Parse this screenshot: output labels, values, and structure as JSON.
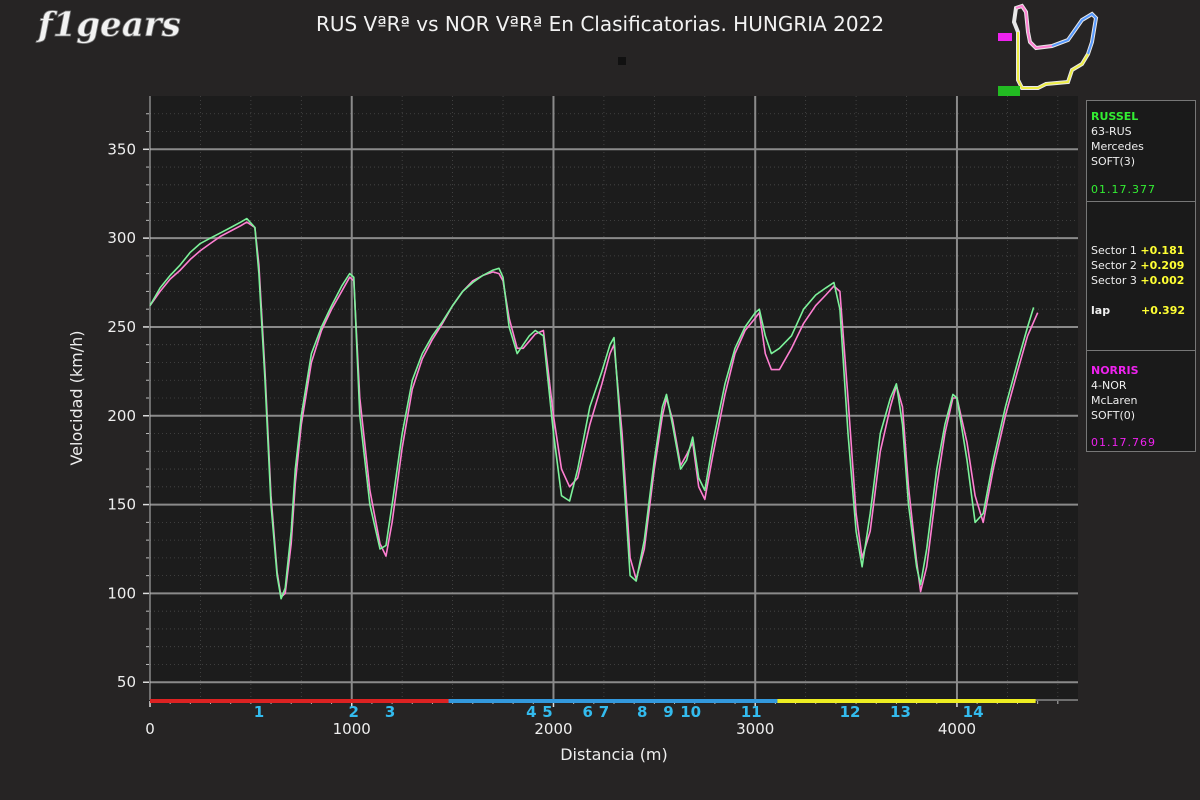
{
  "header": {
    "logo_text": "f1gears",
    "title": "RUS VªRª vs NOR VªRª En Clasificatorias. HUNGRIA 2022"
  },
  "colors": {
    "driver1": "#7cf29a",
    "driver2": "#ff7fd2",
    "sector1": "#dd2222",
    "sector2": "#3399dd",
    "sector3": "#eeee22",
    "turn_label": "#33bbee",
    "background": "#262424",
    "plot_bg": "#1c1c1c"
  },
  "info_panel": {
    "driver1": {
      "name": "RUSSEL",
      "code": "63-RUS",
      "team": "Mercedes",
      "tyre": "SOFT(3)",
      "laptime": "01.17.377"
    },
    "deltas": [
      {
        "label": "Sector 1",
        "value": "+0.181"
      },
      {
        "label": "Sector 2",
        "value": "+0.209"
      },
      {
        "label": "Sector 3",
        "value": "+0.002"
      }
    ],
    "lap_delta": {
      "label": "lap",
      "value": "+0.392"
    },
    "driver2": {
      "name": "NORRIS",
      "code": "4-NOR",
      "team": "McLaren",
      "tyre": "SOFT(0)",
      "laptime": "01.17.769"
    }
  },
  "chart_data": {
    "type": "line",
    "title": "RUS VªRª vs NOR VªRª En Clasificatorias. HUNGRIA 2022",
    "xlabel": "Distancia (m)",
    "ylabel": "Velocidad (km/h)",
    "xlim": [
      0,
      4600
    ],
    "ylim": [
      40,
      380
    ],
    "xticks": [
      0,
      1000,
      2000,
      3000,
      4000
    ],
    "yticks": [
      50,
      100,
      150,
      200,
      250,
      300,
      350
    ],
    "grid": true,
    "series": [
      {
        "name": "RUSSEL",
        "points": [
          [
            0,
            262
          ],
          [
            50,
            272
          ],
          [
            100,
            279
          ],
          [
            150,
            285
          ],
          [
            200,
            292
          ],
          [
            250,
            297
          ],
          [
            300,
            300
          ],
          [
            350,
            303
          ],
          [
            400,
            306
          ],
          [
            450,
            309
          ],
          [
            480,
            311
          ],
          [
            520,
            306
          ],
          [
            540,
            280
          ],
          [
            570,
            220
          ],
          [
            600,
            150
          ],
          [
            630,
            110
          ],
          [
            650,
            97
          ],
          [
            670,
            103
          ],
          [
            700,
            135
          ],
          [
            720,
            170
          ],
          [
            750,
            200
          ],
          [
            800,
            235
          ],
          [
            850,
            250
          ],
          [
            900,
            262
          ],
          [
            950,
            273
          ],
          [
            990,
            280
          ],
          [
            1010,
            278
          ],
          [
            1040,
            200
          ],
          [
            1090,
            150
          ],
          [
            1140,
            125
          ],
          [
            1170,
            127
          ],
          [
            1200,
            150
          ],
          [
            1250,
            190
          ],
          [
            1300,
            220
          ],
          [
            1350,
            235
          ],
          [
            1400,
            245
          ],
          [
            1450,
            253
          ],
          [
            1500,
            262
          ],
          [
            1550,
            270
          ],
          [
            1600,
            275
          ],
          [
            1650,
            279
          ],
          [
            1700,
            282
          ],
          [
            1730,
            283
          ],
          [
            1750,
            278
          ],
          [
            1780,
            250
          ],
          [
            1820,
            235
          ],
          [
            1850,
            240
          ],
          [
            1880,
            245
          ],
          [
            1910,
            248
          ],
          [
            1950,
            245
          ],
          [
            2000,
            190
          ],
          [
            2040,
            155
          ],
          [
            2080,
            152
          ],
          [
            2120,
            170
          ],
          [
            2180,
            205
          ],
          [
            2240,
            225
          ],
          [
            2280,
            240
          ],
          [
            2300,
            244
          ],
          [
            2340,
            180
          ],
          [
            2380,
            110
          ],
          [
            2410,
            107
          ],
          [
            2450,
            130
          ],
          [
            2500,
            175
          ],
          [
            2540,
            205
          ],
          [
            2560,
            212
          ],
          [
            2590,
            195
          ],
          [
            2630,
            170
          ],
          [
            2660,
            175
          ],
          [
            2690,
            188
          ],
          [
            2720,
            165
          ],
          [
            2750,
            158
          ],
          [
            2790,
            185
          ],
          [
            2850,
            218
          ],
          [
            2900,
            238
          ],
          [
            2950,
            250
          ],
          [
            3000,
            258
          ],
          [
            3020,
            260
          ],
          [
            3050,
            245
          ],
          [
            3080,
            235
          ],
          [
            3120,
            238
          ],
          [
            3180,
            245
          ],
          [
            3240,
            260
          ],
          [
            3300,
            268
          ],
          [
            3350,
            272
          ],
          [
            3390,
            275
          ],
          [
            3420,
            260
          ],
          [
            3460,
            190
          ],
          [
            3500,
            135
          ],
          [
            3530,
            115
          ],
          [
            3570,
            145
          ],
          [
            3620,
            190
          ],
          [
            3670,
            210
          ],
          [
            3700,
            218
          ],
          [
            3730,
            195
          ],
          [
            3760,
            150
          ],
          [
            3800,
            115
          ],
          [
            3820,
            105
          ],
          [
            3850,
            125
          ],
          [
            3900,
            170
          ],
          [
            3940,
            195
          ],
          [
            3980,
            212
          ],
          [
            4000,
            210
          ],
          [
            4050,
            175
          ],
          [
            4090,
            140
          ],
          [
            4130,
            145
          ],
          [
            4180,
            175
          ],
          [
            4240,
            205
          ],
          [
            4300,
            230
          ],
          [
            4350,
            250
          ],
          [
            4380,
            261
          ]
        ]
      },
      {
        "name": "NORRIS",
        "points": [
          [
            0,
            262
          ],
          [
            50,
            270
          ],
          [
            100,
            277
          ],
          [
            150,
            282
          ],
          [
            200,
            288
          ],
          [
            250,
            293
          ],
          [
            300,
            297
          ],
          [
            350,
            301
          ],
          [
            400,
            304
          ],
          [
            450,
            307
          ],
          [
            480,
            309
          ],
          [
            520,
            306
          ],
          [
            540,
            285
          ],
          [
            570,
            225
          ],
          [
            600,
            155
          ],
          [
            630,
            112
          ],
          [
            650,
            98
          ],
          [
            670,
            100
          ],
          [
            700,
            128
          ],
          [
            720,
            162
          ],
          [
            750,
            195
          ],
          [
            800,
            230
          ],
          [
            850,
            248
          ],
          [
            900,
            260
          ],
          [
            950,
            270
          ],
          [
            990,
            278
          ],
          [
            1010,
            276
          ],
          [
            1040,
            210
          ],
          [
            1090,
            158
          ],
          [
            1140,
            128
          ],
          [
            1170,
            121
          ],
          [
            1200,
            140
          ],
          [
            1250,
            182
          ],
          [
            1300,
            215
          ],
          [
            1350,
            232
          ],
          [
            1400,
            243
          ],
          [
            1450,
            252
          ],
          [
            1500,
            262
          ],
          [
            1550,
            270
          ],
          [
            1600,
            276
          ],
          [
            1650,
            279
          ],
          [
            1700,
            281
          ],
          [
            1730,
            280
          ],
          [
            1750,
            276
          ],
          [
            1780,
            255
          ],
          [
            1820,
            238
          ],
          [
            1850,
            238
          ],
          [
            1880,
            242
          ],
          [
            1910,
            246
          ],
          [
            1950,
            248
          ],
          [
            2000,
            200
          ],
          [
            2040,
            170
          ],
          [
            2080,
            160
          ],
          [
            2120,
            165
          ],
          [
            2180,
            195
          ],
          [
            2240,
            218
          ],
          [
            2280,
            235
          ],
          [
            2300,
            240
          ],
          [
            2340,
            190
          ],
          [
            2380,
            120
          ],
          [
            2410,
            108
          ],
          [
            2450,
            125
          ],
          [
            2500,
            170
          ],
          [
            2540,
            200
          ],
          [
            2560,
            210
          ],
          [
            2590,
            198
          ],
          [
            2630,
            172
          ],
          [
            2660,
            178
          ],
          [
            2690,
            185
          ],
          [
            2720,
            160
          ],
          [
            2750,
            153
          ],
          [
            2790,
            178
          ],
          [
            2850,
            212
          ],
          [
            2900,
            235
          ],
          [
            2950,
            248
          ],
          [
            3000,
            255
          ],
          [
            3020,
            258
          ],
          [
            3050,
            235
          ],
          [
            3080,
            226
          ],
          [
            3120,
            226
          ],
          [
            3180,
            238
          ],
          [
            3240,
            252
          ],
          [
            3300,
            262
          ],
          [
            3350,
            268
          ],
          [
            3390,
            273
          ],
          [
            3420,
            270
          ],
          [
            3460,
            210
          ],
          [
            3500,
            145
          ],
          [
            3530,
            120
          ],
          [
            3570,
            135
          ],
          [
            3620,
            180
          ],
          [
            3670,
            205
          ],
          [
            3700,
            217
          ],
          [
            3730,
            205
          ],
          [
            3760,
            160
          ],
          [
            3800,
            118
          ],
          [
            3820,
            101
          ],
          [
            3850,
            115
          ],
          [
            3900,
            160
          ],
          [
            3940,
            190
          ],
          [
            3980,
            210
          ],
          [
            4000,
            210
          ],
          [
            4050,
            185
          ],
          [
            4090,
            155
          ],
          [
            4130,
            140
          ],
          [
            4180,
            170
          ],
          [
            4240,
            200
          ],
          [
            4300,
            225
          ],
          [
            4350,
            245
          ],
          [
            4400,
            258
          ]
        ]
      }
    ],
    "sectors": [
      {
        "name": "Sector 1",
        "start": 0,
        "end": 1480
      },
      {
        "name": "Sector 2",
        "start": 1480,
        "end": 3110
      },
      {
        "name": "Sector 3",
        "start": 3110,
        "end": 4390
      }
    ],
    "turns": [
      {
        "label": "1",
        "x": 540
      },
      {
        "label": "2",
        "x": 1010
      },
      {
        "label": "3",
        "x": 1190
      },
      {
        "label": "4",
        "x": 1890
      },
      {
        "label": "5",
        "x": 1970
      },
      {
        "label": "6",
        "x": 2170
      },
      {
        "label": "7",
        "x": 2250
      },
      {
        "label": "8",
        "x": 2440
      },
      {
        "label": "9",
        "x": 2570
      },
      {
        "label": "10",
        "x": 2680
      },
      {
        "label": "11",
        "x": 2980
      },
      {
        "label": "12",
        "x": 3470
      },
      {
        "label": "13",
        "x": 3720
      },
      {
        "label": "14",
        "x": 4080
      }
    ]
  }
}
